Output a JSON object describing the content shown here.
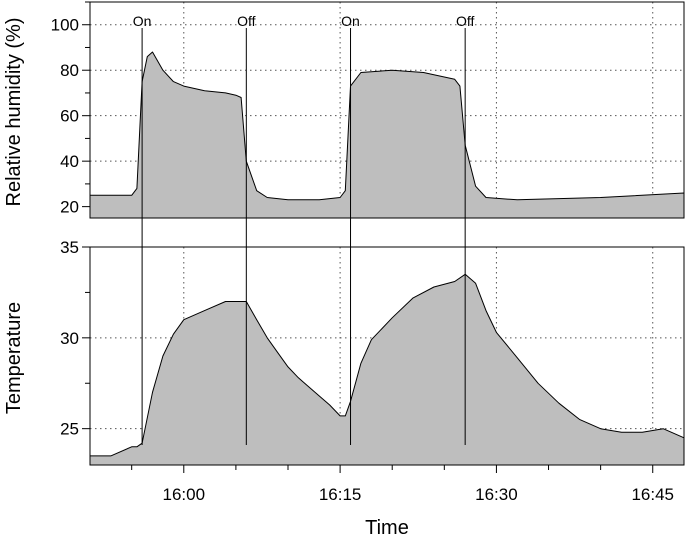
{
  "chart_data": [
    {
      "type": "area",
      "panel": "humidity",
      "ylabel": "Relative humidity (%)",
      "ylim": [
        15,
        110
      ],
      "yticks": [
        20,
        40,
        60,
        80,
        100
      ],
      "x": [
        "15:51",
        "15:53",
        "15:55",
        "15:55:30",
        "15:56",
        "15:56:30",
        "15:57",
        "15:58",
        "15:59",
        "16:00",
        "16:02",
        "16:04",
        "16:05",
        "16:05:30",
        "16:06",
        "16:07",
        "16:08",
        "16:10",
        "16:13",
        "16:15",
        "16:15:30",
        "16:16",
        "16:17",
        "16:20",
        "16:23",
        "16:25",
        "16:26",
        "16:26:30",
        "16:27",
        "16:28",
        "16:29",
        "16:32",
        "16:40",
        "16:48"
      ],
      "y": [
        25,
        25,
        25,
        28,
        75,
        86,
        88,
        80,
        75,
        73,
        71,
        70,
        69,
        68,
        40,
        27,
        24,
        23,
        23,
        24,
        27,
        73,
        79,
        80,
        79,
        77,
        76,
        73,
        47,
        29,
        24,
        23,
        24,
        26
      ]
    },
    {
      "type": "area",
      "panel": "temperature",
      "ylabel": "Temperature",
      "ylim": [
        23,
        35
      ],
      "yticks": [
        25,
        30,
        35
      ],
      "x": [
        "15:51",
        "15:53",
        "15:55",
        "15:55:30",
        "15:56",
        "15:57",
        "15:58",
        "15:59",
        "16:00",
        "16:02",
        "16:04",
        "16:06",
        "16:07",
        "16:08",
        "16:09",
        "16:10",
        "16:11",
        "16:12",
        "16:13",
        "16:14",
        "16:15",
        "16:15:30",
        "16:16",
        "16:17",
        "16:18",
        "16:20",
        "16:22",
        "16:24",
        "16:26",
        "16:27",
        "16:28",
        "16:29",
        "16:30",
        "16:32",
        "16:34",
        "16:36",
        "16:38",
        "16:40",
        "16:42",
        "16:44",
        "16:46",
        "16:48"
      ],
      "y": [
        23.5,
        23.5,
        24,
        24,
        24.2,
        27,
        29,
        30.2,
        31,
        31.5,
        32,
        32,
        31,
        30,
        29.2,
        28.4,
        27.8,
        27.3,
        26.8,
        26.3,
        25.7,
        25.7,
        26.5,
        28.6,
        29.9,
        31.1,
        32.2,
        32.8,
        33.1,
        33.5,
        33,
        31.5,
        30.3,
        28.9,
        27.5,
        26.4,
        25.5,
        25,
        24.8,
        24.8,
        25,
        24.5
      ]
    }
  ],
  "x_axis": {
    "label": "Time",
    "range": [
      "15:51",
      "16:48"
    ],
    "tick_labels": [
      "16:00",
      "16:15",
      "16:30",
      "16:45"
    ],
    "minor_ticks": [
      "15:55",
      "16:05",
      "16:10",
      "16:20",
      "16:25",
      "16:35",
      "16:40"
    ]
  },
  "events": [
    {
      "label": "On",
      "time": "15:56"
    },
    {
      "label": "Off",
      "time": "16:06"
    },
    {
      "label": "On",
      "time": "16:16"
    },
    {
      "label": "Off",
      "time": "16:27"
    }
  ],
  "grid": true,
  "colors": {
    "fill": "#bebebe",
    "line": "#000000",
    "grid": "#555555"
  }
}
